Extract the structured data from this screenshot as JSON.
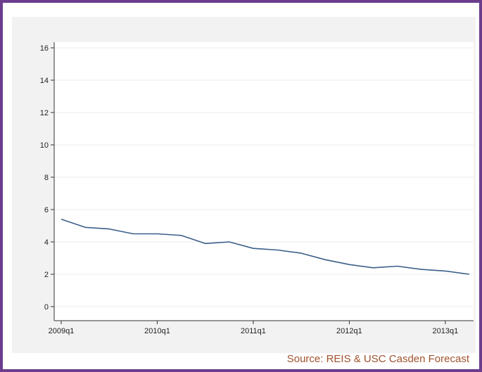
{
  "source_text": "Source:  REIS & USC Casden Forecast",
  "colors": {
    "frame": "#6b3d8c",
    "line": "#3a5f8a",
    "source": "#a0522d"
  },
  "chart_data": {
    "type": "line",
    "title": "",
    "xlabel": "",
    "ylabel": "",
    "ylim": [
      0,
      16
    ],
    "yticks": [
      0,
      2,
      4,
      6,
      8,
      10,
      12,
      14,
      16
    ],
    "xticks": [
      "2009q1",
      "2010q1",
      "2011q1",
      "2012q1",
      "2013q1"
    ],
    "grid": true,
    "x": [
      "2009q1",
      "2009q2",
      "2009q3",
      "2009q4",
      "2010q1",
      "2010q2",
      "2010q3",
      "2010q4",
      "2011q1",
      "2011q2",
      "2011q3",
      "2011q4",
      "2012q1",
      "2012q2",
      "2012q3",
      "2012q4",
      "2013q1",
      "2013q2"
    ],
    "series": [
      {
        "values": [
          5.4,
          4.9,
          4.8,
          4.5,
          4.5,
          4.4,
          3.9,
          4.0,
          3.6,
          3.5,
          3.3,
          2.9,
          2.6,
          2.4,
          2.5,
          2.3,
          2.2,
          2.0
        ]
      }
    ]
  }
}
